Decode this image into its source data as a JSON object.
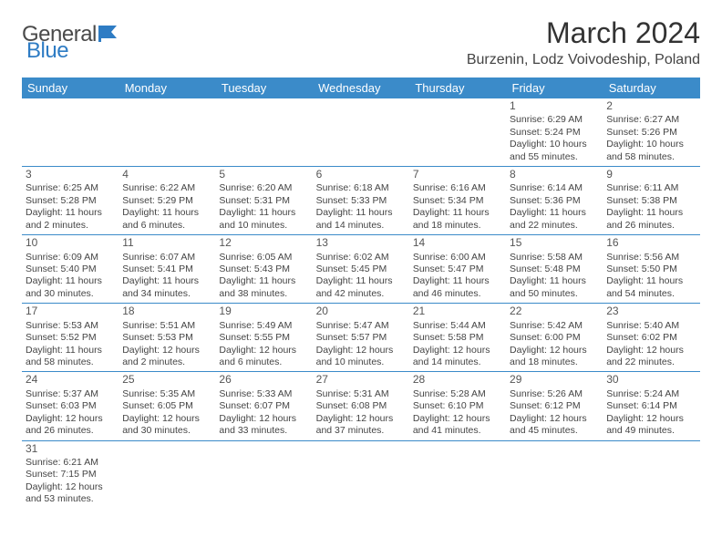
{
  "logo": {
    "word1": "General",
    "word2": "Blue"
  },
  "title": "March 2024",
  "location": "Burzenin, Lodz Voivodeship, Poland",
  "colors": {
    "header_bg": "#3b8bc9",
    "header_text": "#ffffff",
    "border": "#3b8bc9",
    "text": "#444444",
    "title_text": "#333333",
    "logo_gray": "#4a4a4a",
    "logo_blue": "#2e7cc4",
    "background": "#ffffff"
  },
  "day_headers": [
    "Sunday",
    "Monday",
    "Tuesday",
    "Wednesday",
    "Thursday",
    "Friday",
    "Saturday"
  ],
  "weeks": [
    [
      null,
      null,
      null,
      null,
      null,
      {
        "n": "1",
        "sr": "Sunrise: 6:29 AM",
        "ss": "Sunset: 5:24 PM",
        "dl1": "Daylight: 10 hours",
        "dl2": "and 55 minutes."
      },
      {
        "n": "2",
        "sr": "Sunrise: 6:27 AM",
        "ss": "Sunset: 5:26 PM",
        "dl1": "Daylight: 10 hours",
        "dl2": "and 58 minutes."
      }
    ],
    [
      {
        "n": "3",
        "sr": "Sunrise: 6:25 AM",
        "ss": "Sunset: 5:28 PM",
        "dl1": "Daylight: 11 hours",
        "dl2": "and 2 minutes."
      },
      {
        "n": "4",
        "sr": "Sunrise: 6:22 AM",
        "ss": "Sunset: 5:29 PM",
        "dl1": "Daylight: 11 hours",
        "dl2": "and 6 minutes."
      },
      {
        "n": "5",
        "sr": "Sunrise: 6:20 AM",
        "ss": "Sunset: 5:31 PM",
        "dl1": "Daylight: 11 hours",
        "dl2": "and 10 minutes."
      },
      {
        "n": "6",
        "sr": "Sunrise: 6:18 AM",
        "ss": "Sunset: 5:33 PM",
        "dl1": "Daylight: 11 hours",
        "dl2": "and 14 minutes."
      },
      {
        "n": "7",
        "sr": "Sunrise: 6:16 AM",
        "ss": "Sunset: 5:34 PM",
        "dl1": "Daylight: 11 hours",
        "dl2": "and 18 minutes."
      },
      {
        "n": "8",
        "sr": "Sunrise: 6:14 AM",
        "ss": "Sunset: 5:36 PM",
        "dl1": "Daylight: 11 hours",
        "dl2": "and 22 minutes."
      },
      {
        "n": "9",
        "sr": "Sunrise: 6:11 AM",
        "ss": "Sunset: 5:38 PM",
        "dl1": "Daylight: 11 hours",
        "dl2": "and 26 minutes."
      }
    ],
    [
      {
        "n": "10",
        "sr": "Sunrise: 6:09 AM",
        "ss": "Sunset: 5:40 PM",
        "dl1": "Daylight: 11 hours",
        "dl2": "and 30 minutes."
      },
      {
        "n": "11",
        "sr": "Sunrise: 6:07 AM",
        "ss": "Sunset: 5:41 PM",
        "dl1": "Daylight: 11 hours",
        "dl2": "and 34 minutes."
      },
      {
        "n": "12",
        "sr": "Sunrise: 6:05 AM",
        "ss": "Sunset: 5:43 PM",
        "dl1": "Daylight: 11 hours",
        "dl2": "and 38 minutes."
      },
      {
        "n": "13",
        "sr": "Sunrise: 6:02 AM",
        "ss": "Sunset: 5:45 PM",
        "dl1": "Daylight: 11 hours",
        "dl2": "and 42 minutes."
      },
      {
        "n": "14",
        "sr": "Sunrise: 6:00 AM",
        "ss": "Sunset: 5:47 PM",
        "dl1": "Daylight: 11 hours",
        "dl2": "and 46 minutes."
      },
      {
        "n": "15",
        "sr": "Sunrise: 5:58 AM",
        "ss": "Sunset: 5:48 PM",
        "dl1": "Daylight: 11 hours",
        "dl2": "and 50 minutes."
      },
      {
        "n": "16",
        "sr": "Sunrise: 5:56 AM",
        "ss": "Sunset: 5:50 PM",
        "dl1": "Daylight: 11 hours",
        "dl2": "and 54 minutes."
      }
    ],
    [
      {
        "n": "17",
        "sr": "Sunrise: 5:53 AM",
        "ss": "Sunset: 5:52 PM",
        "dl1": "Daylight: 11 hours",
        "dl2": "and 58 minutes."
      },
      {
        "n": "18",
        "sr": "Sunrise: 5:51 AM",
        "ss": "Sunset: 5:53 PM",
        "dl1": "Daylight: 12 hours",
        "dl2": "and 2 minutes."
      },
      {
        "n": "19",
        "sr": "Sunrise: 5:49 AM",
        "ss": "Sunset: 5:55 PM",
        "dl1": "Daylight: 12 hours",
        "dl2": "and 6 minutes."
      },
      {
        "n": "20",
        "sr": "Sunrise: 5:47 AM",
        "ss": "Sunset: 5:57 PM",
        "dl1": "Daylight: 12 hours",
        "dl2": "and 10 minutes."
      },
      {
        "n": "21",
        "sr": "Sunrise: 5:44 AM",
        "ss": "Sunset: 5:58 PM",
        "dl1": "Daylight: 12 hours",
        "dl2": "and 14 minutes."
      },
      {
        "n": "22",
        "sr": "Sunrise: 5:42 AM",
        "ss": "Sunset: 6:00 PM",
        "dl1": "Daylight: 12 hours",
        "dl2": "and 18 minutes."
      },
      {
        "n": "23",
        "sr": "Sunrise: 5:40 AM",
        "ss": "Sunset: 6:02 PM",
        "dl1": "Daylight: 12 hours",
        "dl2": "and 22 minutes."
      }
    ],
    [
      {
        "n": "24",
        "sr": "Sunrise: 5:37 AM",
        "ss": "Sunset: 6:03 PM",
        "dl1": "Daylight: 12 hours",
        "dl2": "and 26 minutes."
      },
      {
        "n": "25",
        "sr": "Sunrise: 5:35 AM",
        "ss": "Sunset: 6:05 PM",
        "dl1": "Daylight: 12 hours",
        "dl2": "and 30 minutes."
      },
      {
        "n": "26",
        "sr": "Sunrise: 5:33 AM",
        "ss": "Sunset: 6:07 PM",
        "dl1": "Daylight: 12 hours",
        "dl2": "and 33 minutes."
      },
      {
        "n": "27",
        "sr": "Sunrise: 5:31 AM",
        "ss": "Sunset: 6:08 PM",
        "dl1": "Daylight: 12 hours",
        "dl2": "and 37 minutes."
      },
      {
        "n": "28",
        "sr": "Sunrise: 5:28 AM",
        "ss": "Sunset: 6:10 PM",
        "dl1": "Daylight: 12 hours",
        "dl2": "and 41 minutes."
      },
      {
        "n": "29",
        "sr": "Sunrise: 5:26 AM",
        "ss": "Sunset: 6:12 PM",
        "dl1": "Daylight: 12 hours",
        "dl2": "and 45 minutes."
      },
      {
        "n": "30",
        "sr": "Sunrise: 5:24 AM",
        "ss": "Sunset: 6:14 PM",
        "dl1": "Daylight: 12 hours",
        "dl2": "and 49 minutes."
      }
    ],
    [
      {
        "n": "31",
        "sr": "Sunrise: 6:21 AM",
        "ss": "Sunset: 7:15 PM",
        "dl1": "Daylight: 12 hours",
        "dl2": "and 53 minutes."
      },
      null,
      null,
      null,
      null,
      null,
      null
    ]
  ]
}
